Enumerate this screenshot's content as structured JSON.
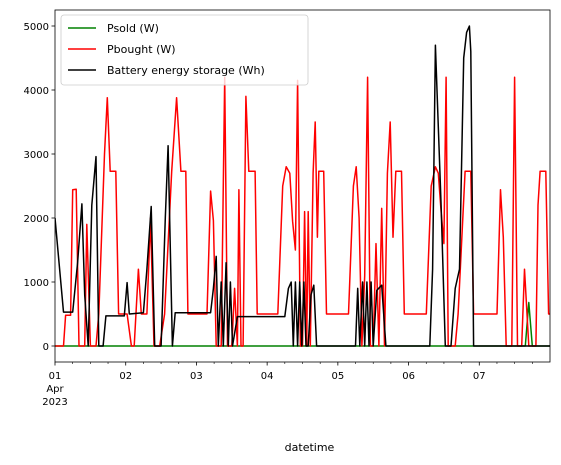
{
  "chart_data": {
    "type": "line",
    "title": "",
    "xlabel": "datetime",
    "ylabel": "",
    "xlim": [
      0,
      7
    ],
    "ylim": [
      -250,
      5250
    ],
    "grid": false,
    "legend_position": "top-left",
    "x_ticks": [
      {
        "x": 0,
        "label": "01"
      },
      {
        "x": 1,
        "label": "02"
      },
      {
        "x": 2,
        "label": "03"
      },
      {
        "x": 3,
        "label": "04"
      },
      {
        "x": 4,
        "label": "05"
      },
      {
        "x": 5,
        "label": "06"
      },
      {
        "x": 6,
        "label": "07"
      }
    ],
    "x_sub_labels": [
      "Apr",
      "2023"
    ],
    "y_ticks": [
      0,
      1000,
      2000,
      3000,
      4000,
      5000
    ],
    "series": [
      {
        "name": "Psold (W)",
        "color": "#008000",
        "points": [
          [
            0.0,
            0
          ],
          [
            6.65,
            0
          ],
          [
            6.7,
            680
          ],
          [
            6.75,
            0
          ],
          [
            7.0,
            0
          ]
        ]
      },
      {
        "name": "Pbought (W)",
        "color": "#ff0000",
        "points": [
          [
            0.0,
            0
          ],
          [
            0.12,
            0
          ],
          [
            0.15,
            480
          ],
          [
            0.22,
            480
          ],
          [
            0.25,
            2440
          ],
          [
            0.3,
            2450
          ],
          [
            0.34,
            0
          ],
          [
            0.42,
            0
          ],
          [
            0.45,
            1900
          ],
          [
            0.5,
            0
          ],
          [
            0.58,
            0
          ],
          [
            0.62,
            500
          ],
          [
            0.7,
            3000
          ],
          [
            0.74,
            3880
          ],
          [
            0.78,
            2730
          ],
          [
            0.86,
            2730
          ],
          [
            0.9,
            500
          ],
          [
            1.02,
            500
          ],
          [
            1.08,
            0
          ],
          [
            1.12,
            0
          ],
          [
            1.18,
            1200
          ],
          [
            1.22,
            500
          ],
          [
            1.3,
            500
          ],
          [
            1.35,
            2000
          ],
          [
            1.4,
            0
          ],
          [
            1.48,
            0
          ],
          [
            1.55,
            500
          ],
          [
            1.65,
            2730
          ],
          [
            1.72,
            3880
          ],
          [
            1.78,
            2730
          ],
          [
            1.85,
            2730
          ],
          [
            1.88,
            500
          ],
          [
            2.15,
            500
          ],
          [
            2.2,
            2420
          ],
          [
            2.24,
            1960
          ],
          [
            2.28,
            0
          ],
          [
            2.35,
            0
          ],
          [
            2.4,
            4200
          ],
          [
            2.44,
            0
          ],
          [
            2.5,
            0
          ],
          [
            2.54,
            900
          ],
          [
            2.58,
            0
          ],
          [
            2.6,
            2440
          ],
          [
            2.63,
            0
          ],
          [
            2.66,
            0
          ],
          [
            2.7,
            3900
          ],
          [
            2.74,
            2730
          ],
          [
            2.83,
            2730
          ],
          [
            2.86,
            500
          ],
          [
            3.15,
            500
          ],
          [
            3.22,
            2500
          ],
          [
            3.27,
            2800
          ],
          [
            3.32,
            2700
          ],
          [
            3.36,
            1950
          ],
          [
            3.4,
            1500
          ],
          [
            3.43,
            4150
          ],
          [
            3.47,
            0
          ],
          [
            3.5,
            0
          ],
          [
            3.53,
            2100
          ],
          [
            3.56,
            0
          ],
          [
            3.58,
            2100
          ],
          [
            3.61,
            0
          ],
          [
            3.65,
            2700
          ],
          [
            3.68,
            3500
          ],
          [
            3.71,
            1700
          ],
          [
            3.73,
            2730
          ],
          [
            3.8,
            2730
          ],
          [
            3.84,
            500
          ],
          [
            4.15,
            500
          ],
          [
            4.22,
            2500
          ],
          [
            4.26,
            2800
          ],
          [
            4.3,
            2000
          ],
          [
            4.34,
            0
          ],
          [
            4.38,
            1100
          ],
          [
            4.42,
            4200
          ],
          [
            4.46,
            0
          ],
          [
            4.5,
            0
          ],
          [
            4.54,
            1600
          ],
          [
            4.58,
            0
          ],
          [
            4.62,
            2150
          ],
          [
            4.66,
            0
          ],
          [
            4.7,
            2700
          ],
          [
            4.74,
            3500
          ],
          [
            4.78,
            1700
          ],
          [
            4.82,
            2730
          ],
          [
            4.9,
            2730
          ],
          [
            4.94,
            500
          ],
          [
            5.25,
            500
          ],
          [
            5.32,
            2500
          ],
          [
            5.38,
            2800
          ],
          [
            5.42,
            2700
          ],
          [
            5.46,
            2100
          ],
          [
            5.5,
            1600
          ],
          [
            5.53,
            4200
          ],
          [
            5.56,
            0
          ],
          [
            5.66,
            0
          ],
          [
            5.7,
            500
          ],
          [
            5.8,
            2730
          ],
          [
            5.88,
            2730
          ],
          [
            5.92,
            500
          ],
          [
            6.25,
            500
          ],
          [
            6.3,
            2440
          ],
          [
            6.34,
            1700
          ],
          [
            6.38,
            0
          ],
          [
            6.46,
            0
          ],
          [
            6.5,
            4200
          ],
          [
            6.54,
            0
          ],
          [
            6.6,
            0
          ],
          [
            6.64,
            1200
          ],
          [
            6.7,
            0
          ],
          [
            6.8,
            0
          ],
          [
            6.83,
            2200
          ],
          [
            6.86,
            2730
          ],
          [
            6.94,
            2730
          ],
          [
            6.98,
            500
          ],
          [
            7.0,
            500
          ]
        ]
      },
      {
        "name": "Battery energy storage (Wh)",
        "color": "#000000",
        "points": [
          [
            0.0,
            2000
          ],
          [
            0.12,
            530
          ],
          [
            0.25,
            530
          ],
          [
            0.32,
            1300
          ],
          [
            0.38,
            2220
          ],
          [
            0.42,
            800
          ],
          [
            0.47,
            0
          ],
          [
            0.52,
            2200
          ],
          [
            0.58,
            2960
          ],
          [
            0.62,
            0
          ],
          [
            0.68,
            0
          ],
          [
            0.72,
            470
          ],
          [
            0.98,
            470
          ],
          [
            1.02,
            990
          ],
          [
            1.05,
            500
          ],
          [
            1.25,
            520
          ],
          [
            1.3,
            1200
          ],
          [
            1.36,
            2180
          ],
          [
            1.41,
            0
          ],
          [
            1.5,
            0
          ],
          [
            1.56,
            2000
          ],
          [
            1.6,
            3130
          ],
          [
            1.66,
            0
          ],
          [
            1.7,
            520
          ],
          [
            2.2,
            520
          ],
          [
            2.24,
            900
          ],
          [
            2.28,
            1400
          ],
          [
            2.31,
            0
          ],
          [
            2.35,
            1000
          ],
          [
            2.38,
            0
          ],
          [
            2.42,
            1300
          ],
          [
            2.45,
            0
          ],
          [
            2.48,
            1000
          ],
          [
            2.51,
            0
          ],
          [
            2.58,
            460
          ],
          [
            3.25,
            460
          ],
          [
            3.3,
            900
          ],
          [
            3.34,
            1000
          ],
          [
            3.37,
            0
          ],
          [
            3.4,
            1000
          ],
          [
            3.43,
            0
          ],
          [
            3.46,
            1000
          ],
          [
            3.49,
            0
          ],
          [
            3.52,
            1000
          ],
          [
            3.55,
            0
          ],
          [
            3.58,
            0
          ],
          [
            3.62,
            800
          ],
          [
            3.66,
            950
          ],
          [
            3.7,
            0
          ],
          [
            4.25,
            0
          ],
          [
            4.28,
            900
          ],
          [
            4.31,
            0
          ],
          [
            4.35,
            1000
          ],
          [
            4.38,
            0
          ],
          [
            4.41,
            1000
          ],
          [
            4.44,
            0
          ],
          [
            4.47,
            1000
          ],
          [
            4.5,
            0
          ],
          [
            4.55,
            870
          ],
          [
            4.62,
            950
          ],
          [
            4.68,
            0
          ],
          [
            5.3,
            0
          ],
          [
            5.34,
            1200
          ],
          [
            5.38,
            4700
          ],
          [
            5.46,
            2200
          ],
          [
            5.52,
            0
          ],
          [
            5.6,
            0
          ],
          [
            5.66,
            900
          ],
          [
            5.72,
            1200
          ],
          [
            5.78,
            4500
          ],
          [
            5.82,
            4900
          ],
          [
            5.86,
            5000
          ],
          [
            5.88,
            4600
          ],
          [
            5.92,
            0
          ],
          [
            7.0,
            0
          ]
        ]
      }
    ]
  }
}
